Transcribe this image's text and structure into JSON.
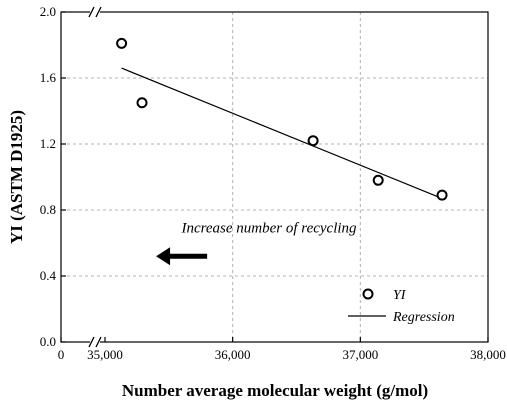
{
  "chart_data": {
    "type": "scatter",
    "xlabel": "Number average molecular weight (g/mol)",
    "ylabel": "YI (ASTM D1925)",
    "xlim": [
      35000,
      38000
    ],
    "ylim": [
      0.0,
      2.0
    ],
    "x_zero_label": "0",
    "x_ticks": [
      35000,
      36000,
      37000,
      38000
    ],
    "x_tick_labels": [
      "35,000",
      "36,000",
      "37,000",
      "38,000"
    ],
    "y_ticks": [
      0.0,
      0.4,
      0.8,
      1.2,
      1.6,
      2.0
    ],
    "y_tick_labels": [
      "0.0",
      "0.4",
      "0.8",
      "1.2",
      "1.6",
      "2.0"
    ],
    "grid": true,
    "axis_break": true,
    "series": [
      {
        "name": "YI",
        "marker": "open-circle",
        "points": [
          {
            "x": 35130,
            "y": 1.81
          },
          {
            "x": 35290,
            "y": 1.45
          },
          {
            "x": 36630,
            "y": 1.22
          },
          {
            "x": 37140,
            "y": 0.98
          },
          {
            "x": 37640,
            "y": 0.89
          }
        ]
      },
      {
        "name": "Regression",
        "type": "line",
        "points": [
          {
            "x": 35130,
            "y": 1.66
          },
          {
            "x": 37640,
            "y": 0.87
          }
        ]
      }
    ],
    "annotation": {
      "text": "Increase number of recycling",
      "arrow_direction": "left",
      "x_from": 35800,
      "x_to": 35400,
      "y": 0.58
    },
    "legend": {
      "position": "bottom-right",
      "entries": [
        "YI",
        "Regression"
      ]
    },
    "colors": {
      "axis": "#000000",
      "grid": "#b0b0b0",
      "marker": "#000000",
      "line": "#000000"
    }
  }
}
